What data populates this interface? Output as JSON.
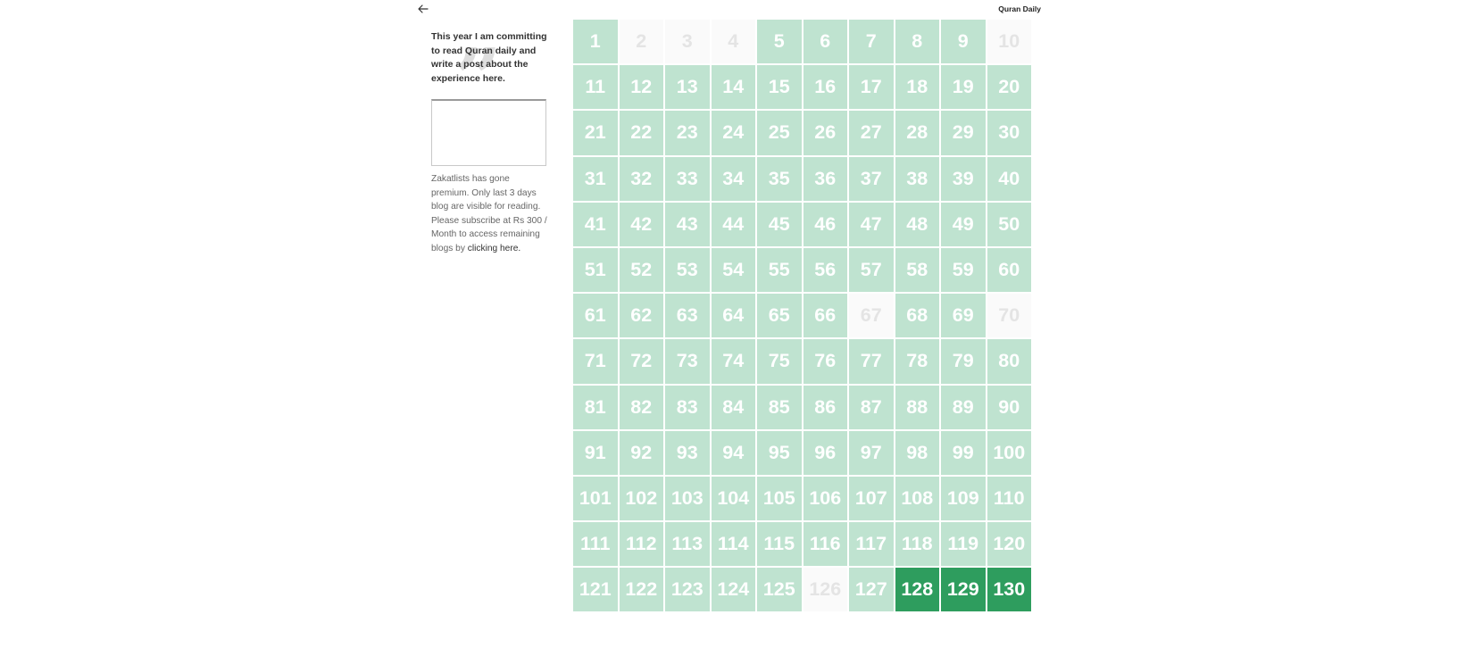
{
  "header": {
    "back_icon": "arrow-left-icon",
    "site_title": "Quran Daily"
  },
  "sidebar": {
    "quote_icon": "quotation-mark-icon",
    "quote": "This year I am committing to read Quran daily and write a post about the experience here.",
    "premium_note": "Zakatlists has gone premium. Only last 3 days blog are visible for reading. Please subscribe at Rs 300 / Month to access remaining blogs by ",
    "premium_link": "clicking here."
  },
  "colors": {
    "completed_light": "#bfe3d0",
    "completed_dark": "#2e9d5e",
    "missed": "#fafafa",
    "missed_text": "#e4e4e4"
  },
  "tracker": {
    "days": [
      {
        "label": "1",
        "status": "light"
      },
      {
        "label": "2",
        "status": "empty"
      },
      {
        "label": "3",
        "status": "empty"
      },
      {
        "label": "4",
        "status": "empty"
      },
      {
        "label": "5",
        "status": "light"
      },
      {
        "label": "6",
        "status": "light"
      },
      {
        "label": "7",
        "status": "light"
      },
      {
        "label": "8",
        "status": "light"
      },
      {
        "label": "9",
        "status": "light"
      },
      {
        "label": "10",
        "status": "empty"
      },
      {
        "label": "11",
        "status": "light"
      },
      {
        "label": "12",
        "status": "light"
      },
      {
        "label": "13",
        "status": "light"
      },
      {
        "label": "14",
        "status": "light"
      },
      {
        "label": "15",
        "status": "light"
      },
      {
        "label": "16",
        "status": "light"
      },
      {
        "label": "17",
        "status": "light"
      },
      {
        "label": "18",
        "status": "light"
      },
      {
        "label": "19",
        "status": "light"
      },
      {
        "label": "20",
        "status": "light"
      },
      {
        "label": "21",
        "status": "light"
      },
      {
        "label": "22",
        "status": "light"
      },
      {
        "label": "23",
        "status": "light"
      },
      {
        "label": "24",
        "status": "light"
      },
      {
        "label": "25",
        "status": "light"
      },
      {
        "label": "26",
        "status": "light"
      },
      {
        "label": "27",
        "status": "light"
      },
      {
        "label": "28",
        "status": "light"
      },
      {
        "label": "29",
        "status": "light"
      },
      {
        "label": "30",
        "status": "light"
      },
      {
        "label": "31",
        "status": "light"
      },
      {
        "label": "32",
        "status": "light"
      },
      {
        "label": "33",
        "status": "light"
      },
      {
        "label": "34",
        "status": "light"
      },
      {
        "label": "35",
        "status": "light"
      },
      {
        "label": "36",
        "status": "light"
      },
      {
        "label": "37",
        "status": "light"
      },
      {
        "label": "38",
        "status": "light"
      },
      {
        "label": "39",
        "status": "light"
      },
      {
        "label": "40",
        "status": "light"
      },
      {
        "label": "41",
        "status": "light"
      },
      {
        "label": "42",
        "status": "light"
      },
      {
        "label": "43",
        "status": "light"
      },
      {
        "label": "44",
        "status": "light"
      },
      {
        "label": "45",
        "status": "light"
      },
      {
        "label": "46",
        "status": "light"
      },
      {
        "label": "47",
        "status": "light"
      },
      {
        "label": "48",
        "status": "light"
      },
      {
        "label": "49",
        "status": "light"
      },
      {
        "label": "50",
        "status": "light"
      },
      {
        "label": "51",
        "status": "light"
      },
      {
        "label": "52",
        "status": "light"
      },
      {
        "label": "53",
        "status": "light"
      },
      {
        "label": "54",
        "status": "light"
      },
      {
        "label": "55",
        "status": "light"
      },
      {
        "label": "56",
        "status": "light"
      },
      {
        "label": "57",
        "status": "light"
      },
      {
        "label": "58",
        "status": "light"
      },
      {
        "label": "59",
        "status": "light"
      },
      {
        "label": "60",
        "status": "light"
      },
      {
        "label": "61",
        "status": "light"
      },
      {
        "label": "62",
        "status": "light"
      },
      {
        "label": "63",
        "status": "light"
      },
      {
        "label": "64",
        "status": "light"
      },
      {
        "label": "65",
        "status": "light"
      },
      {
        "label": "66",
        "status": "light"
      },
      {
        "label": "67",
        "status": "empty"
      },
      {
        "label": "68",
        "status": "light"
      },
      {
        "label": "69",
        "status": "light"
      },
      {
        "label": "70",
        "status": "empty"
      },
      {
        "label": "71",
        "status": "light"
      },
      {
        "label": "72",
        "status": "light"
      },
      {
        "label": "73",
        "status": "light"
      },
      {
        "label": "74",
        "status": "light"
      },
      {
        "label": "75",
        "status": "light"
      },
      {
        "label": "76",
        "status": "light"
      },
      {
        "label": "77",
        "status": "light"
      },
      {
        "label": "78",
        "status": "light"
      },
      {
        "label": "79",
        "status": "light"
      },
      {
        "label": "80",
        "status": "light"
      },
      {
        "label": "81",
        "status": "light"
      },
      {
        "label": "82",
        "status": "light"
      },
      {
        "label": "83",
        "status": "light"
      },
      {
        "label": "84",
        "status": "light"
      },
      {
        "label": "85",
        "status": "light"
      },
      {
        "label": "86",
        "status": "light"
      },
      {
        "label": "87",
        "status": "light"
      },
      {
        "label": "88",
        "status": "light"
      },
      {
        "label": "89",
        "status": "light"
      },
      {
        "label": "90",
        "status": "light"
      },
      {
        "label": "91",
        "status": "light"
      },
      {
        "label": "92",
        "status": "light"
      },
      {
        "label": "93",
        "status": "light"
      },
      {
        "label": "94",
        "status": "light"
      },
      {
        "label": "95",
        "status": "light"
      },
      {
        "label": "96",
        "status": "light"
      },
      {
        "label": "97",
        "status": "light"
      },
      {
        "label": "98",
        "status": "light"
      },
      {
        "label": "99",
        "status": "light"
      },
      {
        "label": "100",
        "status": "light"
      },
      {
        "label": "101",
        "status": "light"
      },
      {
        "label": "102",
        "status": "light"
      },
      {
        "label": "103",
        "status": "light"
      },
      {
        "label": "104",
        "status": "light"
      },
      {
        "label": "105",
        "status": "light"
      },
      {
        "label": "106",
        "status": "light"
      },
      {
        "label": "107",
        "status": "light"
      },
      {
        "label": "108",
        "status": "light"
      },
      {
        "label": "109",
        "status": "light"
      },
      {
        "label": "110",
        "status": "light"
      },
      {
        "label": "111",
        "status": "light"
      },
      {
        "label": "112",
        "status": "light"
      },
      {
        "label": "113",
        "status": "light"
      },
      {
        "label": "114",
        "status": "light"
      },
      {
        "label": "115",
        "status": "light"
      },
      {
        "label": "116",
        "status": "light"
      },
      {
        "label": "117",
        "status": "light"
      },
      {
        "label": "118",
        "status": "light"
      },
      {
        "label": "119",
        "status": "light"
      },
      {
        "label": "120",
        "status": "light"
      },
      {
        "label": "121",
        "status": "light"
      },
      {
        "label": "122",
        "status": "light"
      },
      {
        "label": "123",
        "status": "light"
      },
      {
        "label": "124",
        "status": "light"
      },
      {
        "label": "125",
        "status": "light"
      },
      {
        "label": "126",
        "status": "empty"
      },
      {
        "label": "127",
        "status": "light"
      },
      {
        "label": "128",
        "status": "dark"
      },
      {
        "label": "129",
        "status": "dark"
      },
      {
        "label": "130",
        "status": "dark"
      }
    ]
  }
}
